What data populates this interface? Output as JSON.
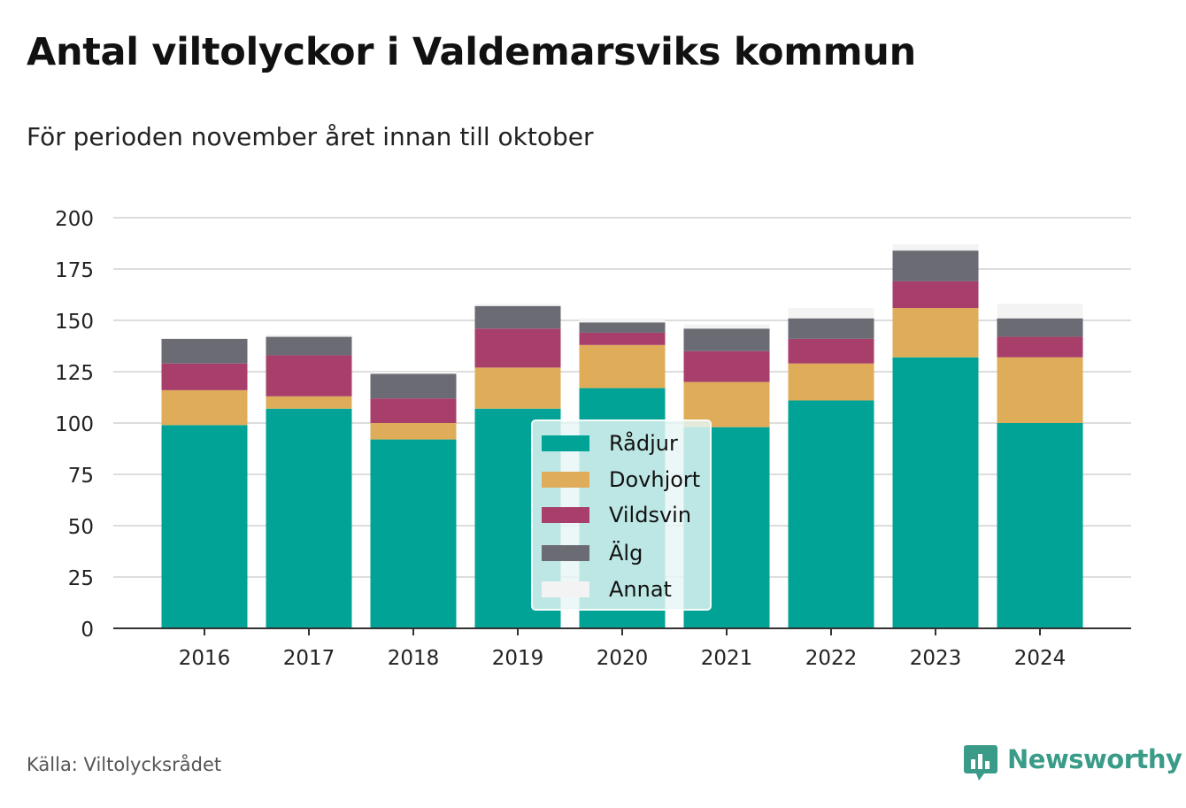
{
  "title": "Antal viltolyckor i Valdemarsviks kommun",
  "subtitle": "För perioden november året innan till oktober",
  "source": "Källa: Viltolycksrådet",
  "brand": "Newsworthy",
  "colors": {
    "brand": "#3a9c88",
    "grid": "#dddddd",
    "axis": "#333333"
  },
  "chart_data": {
    "type": "bar",
    "stacked": true,
    "categories": [
      "2016",
      "2017",
      "2018",
      "2019",
      "2020",
      "2021",
      "2022",
      "2023",
      "2024"
    ],
    "series": [
      {
        "name": "Rådjur",
        "color": "#00a396",
        "values": [
          99,
          107,
          92,
          107,
          117,
          98,
          111,
          132,
          100
        ]
      },
      {
        "name": "Dovhjort",
        "color": "#dfad5a",
        "values": [
          17,
          6,
          8,
          20,
          21,
          22,
          18,
          24,
          32
        ]
      },
      {
        "name": "Vildsvin",
        "color": "#a83f6b",
        "values": [
          13,
          20,
          12,
          19,
          6,
          15,
          12,
          13,
          10
        ]
      },
      {
        "name": "Älg",
        "color": "#6b6b73",
        "values": [
          12,
          9,
          12,
          11,
          5,
          11,
          10,
          15,
          9
        ]
      },
      {
        "name": "Annat",
        "color": "#f3f3f3",
        "values": [
          0,
          1,
          1,
          1,
          2,
          2,
          5,
          3,
          7
        ]
      }
    ],
    "ylim": [
      0,
      200
    ],
    "yticks": [
      0,
      25,
      50,
      75,
      100,
      125,
      150,
      175,
      200
    ],
    "grid": true,
    "legend": "center"
  }
}
